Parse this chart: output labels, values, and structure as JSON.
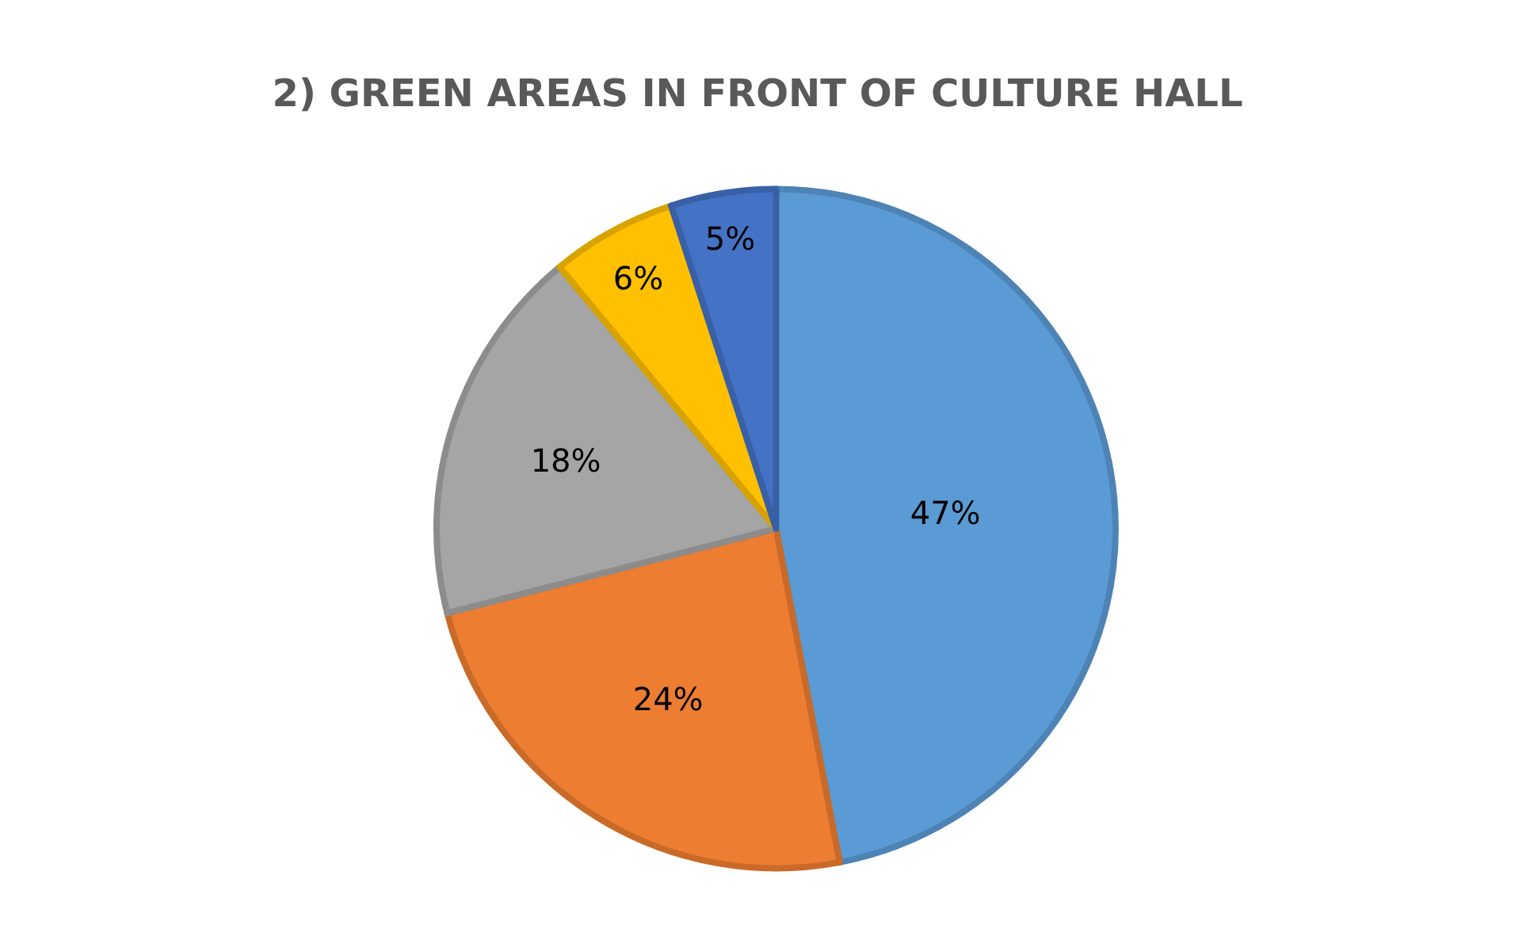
{
  "chart_data": {
    "type": "pie",
    "title": "2) GREEN AREAS IN FRONT OF CULTURE HALL",
    "categories": [
      null,
      null,
      null,
      null,
      null
    ],
    "values": [
      47,
      24,
      18,
      6,
      5
    ],
    "colors": [
      "#5b9bd5",
      "#ed7d31",
      "#a5a5a5",
      "#ffc000",
      "#4472c4"
    ],
    "value_labels": [
      "47%",
      "24%",
      "18%",
      "6%",
      "5%"
    ]
  }
}
